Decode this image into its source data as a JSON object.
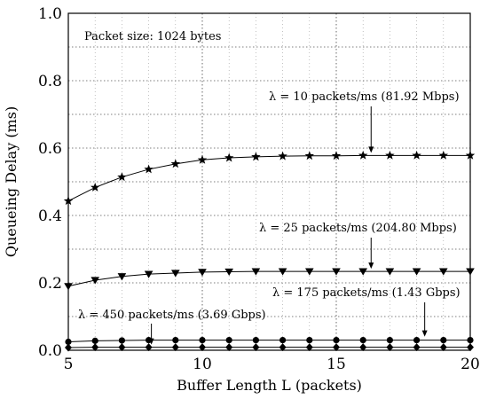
{
  "chart_data": {
    "type": "line",
    "title": "",
    "xlabel": "Buffer Length L (packets)",
    "ylabel": "Queueing Delay (ms)",
    "xlim": [
      5,
      20
    ],
    "ylim": [
      0,
      1.0
    ],
    "x_ticks": [
      "5",
      "10",
      "15",
      "20"
    ],
    "y_ticks": [
      "0.0",
      "0.2",
      "0.4",
      "0.6",
      "0.8",
      "1.0"
    ],
    "grid": "dotted",
    "x": [
      5,
      6,
      7,
      8,
      9,
      10,
      11,
      12,
      13,
      14,
      15,
      16,
      17,
      18,
      19,
      20
    ],
    "series": [
      {
        "marker": "star",
        "values": [
          0.443,
          0.483,
          0.514,
          0.537,
          0.553,
          0.565,
          0.571,
          0.574,
          0.576,
          0.577,
          0.577,
          0.578,
          0.578,
          0.578,
          0.578,
          0.578
        ]
      },
      {
        "marker": "triangle-down",
        "values": [
          0.19,
          0.208,
          0.219,
          0.226,
          0.229,
          0.232,
          0.233,
          0.234,
          0.234,
          0.234,
          0.234,
          0.234,
          0.234,
          0.234,
          0.234,
          0.234
        ]
      },
      {
        "marker": "circle",
        "values": [
          0.025,
          0.028,
          0.029,
          0.03,
          0.03,
          0.03,
          0.03,
          0.03,
          0.03,
          0.03,
          0.03,
          0.03,
          0.03,
          0.03,
          0.03,
          0.03
        ]
      },
      {
        "marker": "diamond",
        "values": [
          0.008,
          0.009,
          0.009,
          0.009,
          0.009,
          0.009,
          0.009,
          0.009,
          0.009,
          0.009,
          0.009,
          0.009,
          0.009,
          0.009,
          0.009,
          0.009
        ]
      }
    ],
    "annotations": [
      {
        "text": "Packet size: 1024 bytes"
      },
      {
        "text": "λ = 10 packets/ms (81.92 Mbps)",
        "x": 16.3,
        "y": 0.578
      },
      {
        "text": "λ = 25 packets/ms  (204.80 Mbps)",
        "x": 16.3,
        "y": 0.234
      },
      {
        "text": "λ =  175 packets/ms  (1.43 Gbps)",
        "x": 18.3,
        "y": 0.03
      },
      {
        "text": "λ =  450 packets/ms  (3.69 Gbps)",
        "x": 8.1,
        "y": 0.009
      }
    ]
  }
}
